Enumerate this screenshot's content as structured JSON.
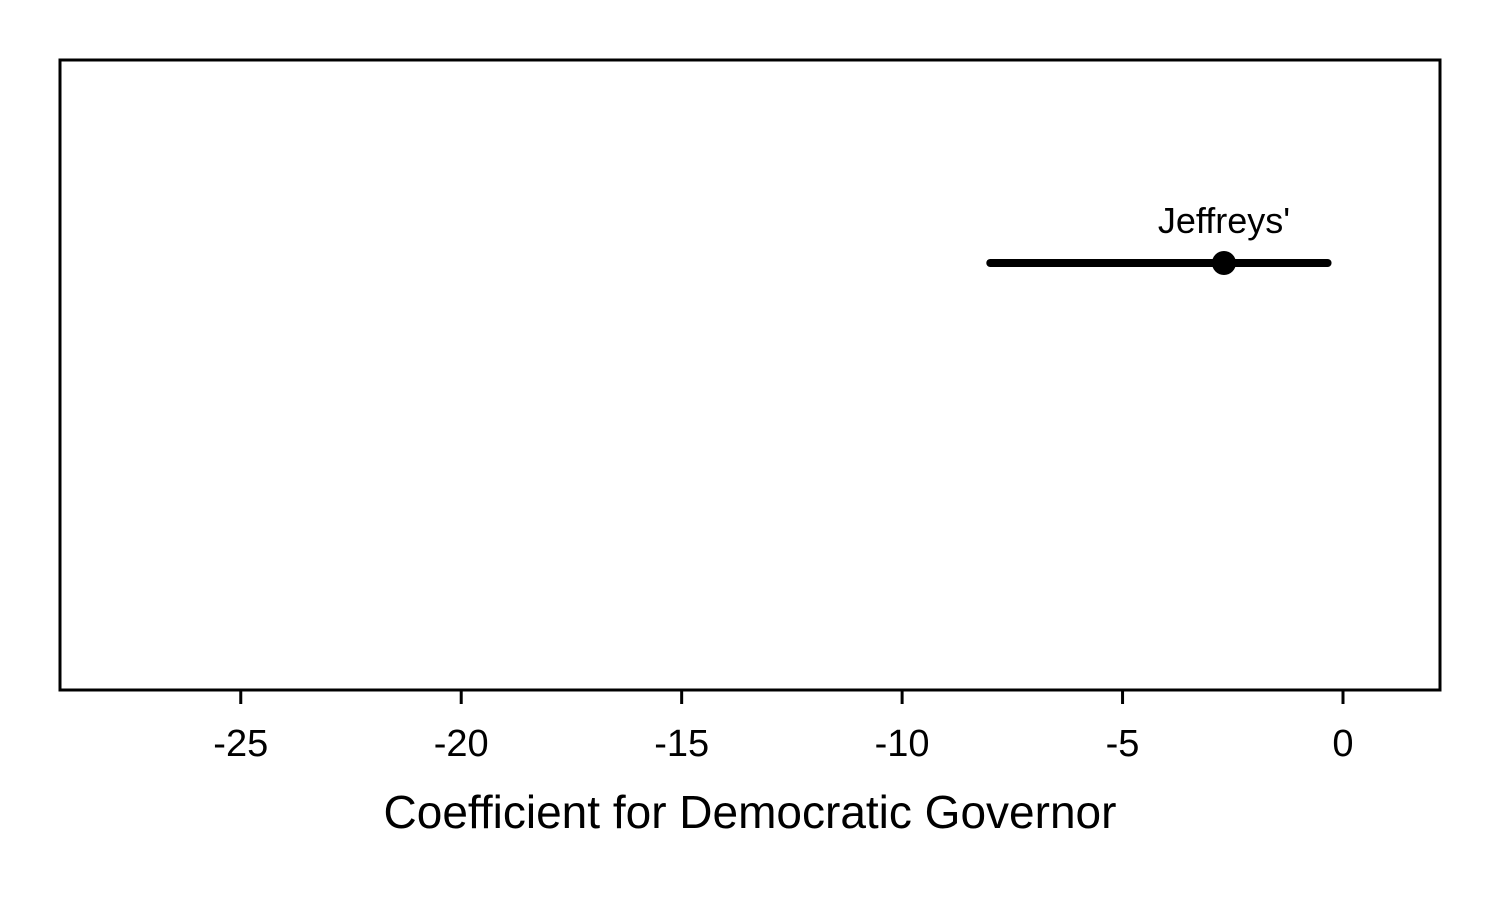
{
  "chart_data": {
    "type": "dot-interval",
    "xlabel": "Coefficient for Democratic Governor",
    "ylabel": "",
    "title": "",
    "xlim": [
      -29.1,
      2.2
    ],
    "xticks": [
      -25,
      -20,
      -15,
      -10,
      -5,
      0
    ],
    "xtick_labels": [
      "-25",
      "-20",
      "-15",
      "-10",
      "-5",
      "0"
    ],
    "grid": false,
    "series": [
      {
        "label": "Jeffreys'",
        "estimate": -2.7,
        "lower": -8.0,
        "upper": -0.35
      }
    ],
    "colors": {
      "line": "#000000",
      "point": "#000000"
    }
  }
}
